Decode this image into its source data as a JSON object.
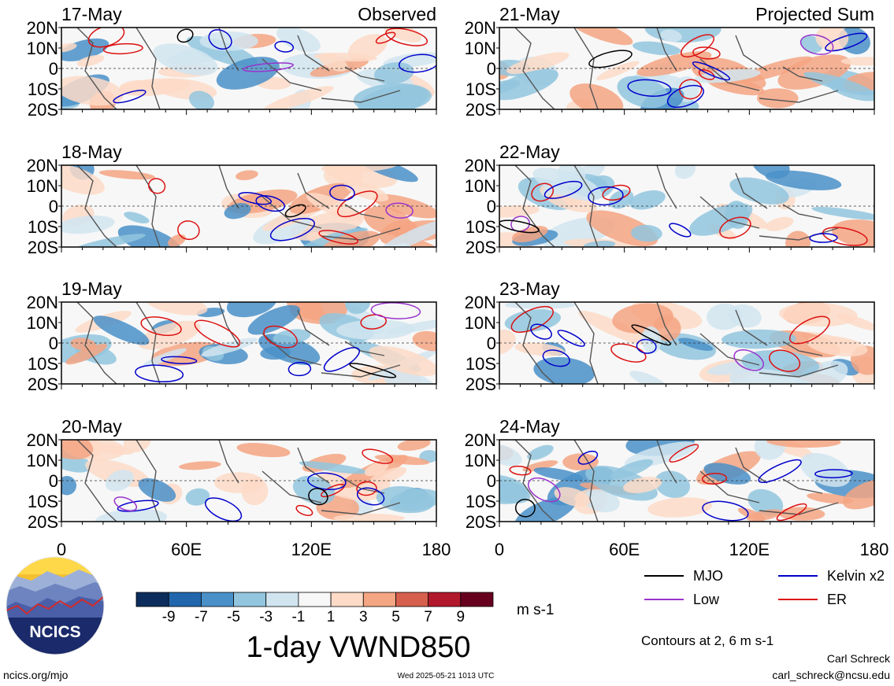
{
  "chart_data": {
    "type": "heatmap",
    "variable_title": "1-day VWND850",
    "units": "m s-1",
    "column_labels": [
      "Observed",
      "Projected Sum"
    ],
    "panels": [
      {
        "date": "17-May",
        "column": 0,
        "header": "Observed"
      },
      {
        "date": "18-May",
        "column": 0,
        "header": ""
      },
      {
        "date": "19-May",
        "column": 0,
        "header": ""
      },
      {
        "date": "20-May",
        "column": 0,
        "header": ""
      },
      {
        "date": "21-May",
        "column": 1,
        "header": "Projected Sum"
      },
      {
        "date": "22-May",
        "column": 1,
        "header": ""
      },
      {
        "date": "23-May",
        "column": 1,
        "header": ""
      },
      {
        "date": "24-May",
        "column": 1,
        "header": ""
      }
    ],
    "y_tick_labels": [
      "20N",
      "10N",
      "0",
      "10S",
      "20S"
    ],
    "ylim": [
      -20,
      20
    ],
    "x_tick_labels": [
      "0",
      "60E",
      "120E",
      "180"
    ],
    "xlim": [
      0,
      180
    ],
    "colorbar": {
      "labels": [
        "-9",
        "-7",
        "-5",
        "-3",
        "-1",
        "1",
        "3",
        "5",
        "7",
        "9"
      ],
      "colors": [
        "#0c2d5c",
        "#2166ac",
        "#4a90c8",
        "#92c5de",
        "#d1e5f0",
        "#f7f7f7",
        "#fddbc7",
        "#f4a582",
        "#d6604d",
        "#b2182b",
        "#67001f"
      ]
    },
    "legend": [
      {
        "label": "MJO",
        "color": "#000000"
      },
      {
        "label": "Kelvin x2",
        "color": "#0000cc"
      },
      {
        "label": "Low",
        "color": "#9933cc"
      },
      {
        "label": "ER",
        "color": "#dd1111"
      }
    ],
    "contour_note": "Contours at 2, 6 m s-1"
  },
  "footer": {
    "logo_text": "NCICS",
    "left_url": "ncics.org/mjo",
    "timestamp": "Wed 2025-05-21 1013 UTC",
    "author": "Carl Schreck",
    "email": "carl_schreck@ncsu.edu"
  }
}
